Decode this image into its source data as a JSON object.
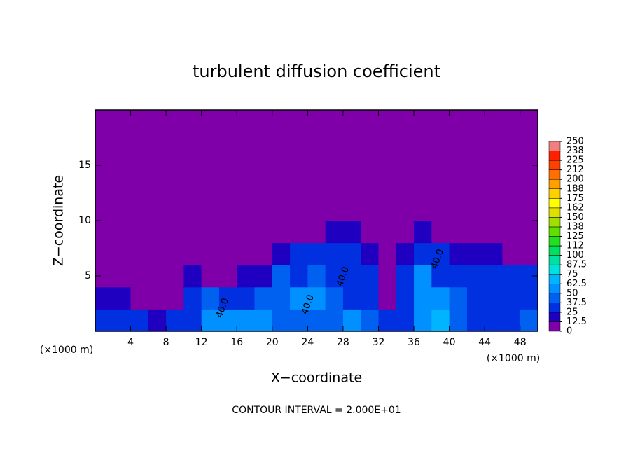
{
  "chart_data": {
    "type": "heatmap",
    "title": "turbulent diffusion coefficient",
    "xlabel": "X−coordinate",
    "ylabel": "Z−coordinate",
    "x_unit": "(×1000 m)",
    "y_unit": "(×1000 m)",
    "footnote": "CONTOUR INTERVAL = 2.000E+01",
    "xlim": [
      0,
      50
    ],
    "ylim": [
      0,
      20
    ],
    "xticks": [
      4,
      8,
      12,
      16,
      20,
      24,
      28,
      32,
      36,
      40,
      44,
      48
    ],
    "yticks": [
      5,
      10,
      15
    ],
    "x_edges": [
      0,
      2,
      4,
      6,
      8,
      10,
      12,
      14,
      16,
      18,
      20,
      22,
      24,
      26,
      28,
      30,
      32,
      34,
      36,
      38,
      40,
      42,
      44,
      46,
      48,
      50
    ],
    "y_edges": [
      0,
      2,
      4,
      6,
      8,
      10,
      12,
      14,
      16,
      18,
      20
    ],
    "z": [
      [
        25,
        30,
        25,
        20,
        28,
        35,
        50,
        60,
        55,
        50,
        45,
        40,
        40,
        45,
        50,
        40,
        30,
        35,
        60,
        65,
        40,
        35,
        30,
        35,
        40
      ],
      [
        20,
        15,
        10,
        10,
        12,
        30,
        40,
        35,
        30,
        40,
        45,
        55,
        50,
        40,
        35,
        30,
        10,
        35,
        60,
        55,
        40,
        35,
        30,
        30,
        35
      ],
      [
        10,
        8,
        5,
        5,
        5,
        15,
        10,
        10,
        15,
        20,
        40,
        35,
        45,
        30,
        35,
        30,
        10,
        30,
        55,
        35,
        30,
        30,
        30,
        30,
        30
      ],
      [
        5,
        5,
        5,
        5,
        5,
        5,
        5,
        5,
        5,
        10,
        15,
        25,
        30,
        30,
        25,
        15,
        5,
        15,
        25,
        25,
        20,
        20,
        15,
        10,
        5
      ],
      [
        0,
        0,
        0,
        0,
        0,
        0,
        0,
        0,
        0,
        0,
        0,
        0,
        10,
        15,
        15,
        0,
        0,
        0,
        15,
        10,
        0,
        0,
        0,
        0,
        0
      ],
      [
        0,
        0,
        0,
        0,
        0,
        0,
        0,
        0,
        0,
        0,
        0,
        0,
        0,
        0,
        0,
        0,
        0,
        0,
        0,
        0,
        0,
        0,
        0,
        0,
        0
      ],
      [
        0,
        0,
        0,
        0,
        0,
        0,
        0,
        0,
        0,
        0,
        0,
        0,
        0,
        0,
        0,
        0,
        0,
        0,
        0,
        0,
        0,
        0,
        0,
        0,
        0
      ],
      [
        0,
        0,
        0,
        0,
        0,
        0,
        0,
        0,
        0,
        0,
        0,
        0,
        0,
        0,
        0,
        0,
        0,
        0,
        0,
        0,
        0,
        0,
        0,
        0,
        0
      ],
      [
        0,
        0,
        0,
        0,
        0,
        0,
        0,
        0,
        0,
        0,
        0,
        0,
        0,
        0,
        0,
        0,
        0,
        0,
        0,
        0,
        0,
        0,
        0,
        0,
        0
      ],
      [
        0,
        0,
        0,
        0,
        0,
        0,
        0,
        0,
        0,
        0,
        0,
        0,
        0,
        0,
        0,
        0,
        0,
        0,
        0,
        0,
        0,
        0,
        0,
        0,
        0
      ]
    ],
    "contour_labels": [
      "40.0",
      "40.0",
      "40.0",
      "40.0"
    ],
    "colorbar_lim": [
      0,
      250
    ],
    "colorbar_ticks": [
      0,
      12.5,
      25,
      37.5,
      50,
      62.5,
      75,
      87.5,
      100,
      {
        "value": 112.5,
        "label": "112"
      },
      125,
      {
        "value": 137.5,
        "label": "138"
      },
      150,
      {
        "value": 162.5,
        "label": "162"
      },
      175,
      {
        "value": 187.5,
        "label": "188"
      },
      200,
      {
        "value": 212.5,
        "label": "212"
      },
      225,
      {
        "value": 237.5,
        "label": "238"
      },
      250
    ],
    "colors": [
      "#7f00a8",
      "#2000c0",
      "#0030e0",
      "#0060f0",
      "#0090ff",
      "#00b4ff",
      "#00e0e0",
      "#00e0a0",
      "#00e060",
      "#20e020",
      "#60e000",
      "#a0e000",
      "#e0e000",
      "#ffff00",
      "#ffd000",
      "#ffa000",
      "#ff7000",
      "#ff4000",
      "#ff2000",
      "#f08080"
    ]
  }
}
